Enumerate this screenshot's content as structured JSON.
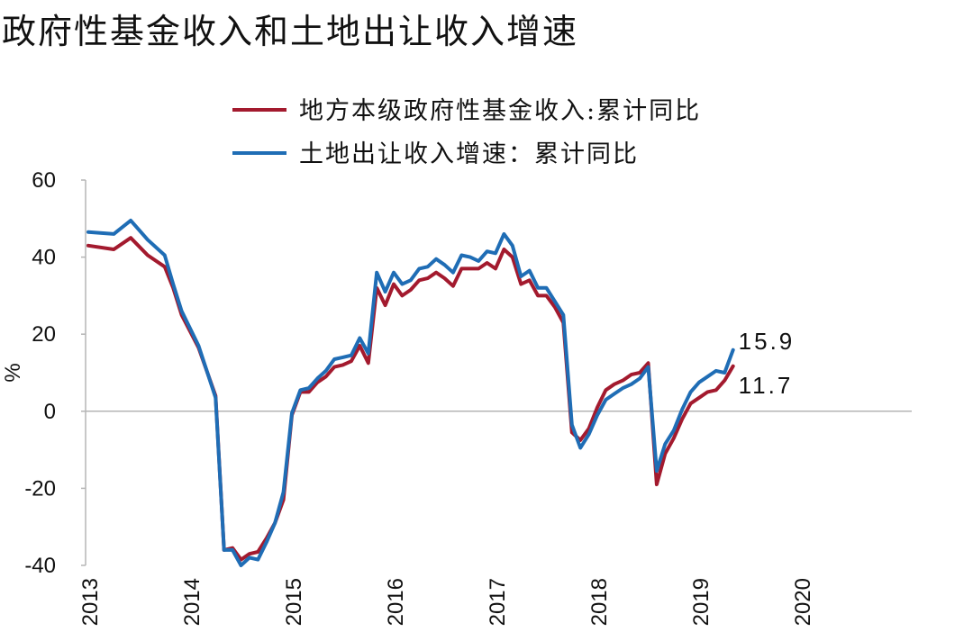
{
  "chart_data": {
    "type": "line",
    "title": "政府性基金收入和土地出让收入增速",
    "ylabel": "%",
    "ylim": [
      -40,
      60
    ],
    "yticks": [
      "60",
      "40",
      "20",
      "0",
      "-20",
      "-40"
    ],
    "year_labels": [
      "2013",
      "2014",
      "2015",
      "2016",
      "2017",
      "2018",
      "2019",
      "2020"
    ],
    "legend_position": "top-center",
    "grid": false,
    "series": [
      {
        "name": "地方本级政府性基金收入:累计同比",
        "color": "#a31a2e",
        "end_label": "11.7",
        "points": [
          [
            "2013-01",
            43.0
          ],
          [
            "2013-04",
            42.0
          ],
          [
            "2013-06",
            45.0
          ],
          [
            "2013-08",
            40.5
          ],
          [
            "2013-10",
            37.5
          ],
          [
            "2013-11",
            32.0
          ],
          [
            "2013-12",
            25.0
          ],
          [
            "2014-02",
            16.5
          ],
          [
            "2014-04",
            4.0
          ],
          [
            "2014-05",
            -36.0
          ],
          [
            "2014-06",
            -35.5
          ],
          [
            "2014-07",
            -38.5
          ],
          [
            "2014-08",
            -37.0
          ],
          [
            "2014-09",
            -36.5
          ],
          [
            "2014-10",
            -33.0
          ],
          [
            "2014-11",
            -29.0
          ],
          [
            "2014-12",
            -23.0
          ],
          [
            "2015-01",
            -1.0
          ],
          [
            "2015-02",
            5.0
          ],
          [
            "2015-03",
            5.0
          ],
          [
            "2015-04",
            7.5
          ],
          [
            "2015-05",
            9.0
          ],
          [
            "2015-06",
            11.5
          ],
          [
            "2015-07",
            12.0
          ],
          [
            "2015-08",
            13.0
          ],
          [
            "2015-09",
            17.0
          ],
          [
            "2015-10",
            12.5
          ],
          [
            "2015-11",
            32.0
          ],
          [
            "2015-12",
            27.5
          ],
          [
            "2016-01",
            33.0
          ],
          [
            "2016-02",
            30.0
          ],
          [
            "2016-03",
            31.5
          ],
          [
            "2016-04",
            34.0
          ],
          [
            "2016-05",
            34.5
          ],
          [
            "2016-06",
            36.0
          ],
          [
            "2016-07",
            34.5
          ],
          [
            "2016-08",
            32.5
          ],
          [
            "2016-09",
            37.0
          ],
          [
            "2016-10",
            37.0
          ],
          [
            "2016-11",
            37.0
          ],
          [
            "2016-12",
            38.5
          ],
          [
            "2017-01",
            37.0
          ],
          [
            "2017-02",
            42.0
          ],
          [
            "2017-03",
            40.0
          ],
          [
            "2017-04",
            33.0
          ],
          [
            "2017-05",
            34.0
          ],
          [
            "2017-06",
            30.0
          ],
          [
            "2017-07",
            30.0
          ],
          [
            "2017-08",
            27.0
          ],
          [
            "2017-09",
            23.0
          ],
          [
            "2017-10",
            -5.5
          ],
          [
            "2017-11",
            -7.5
          ],
          [
            "2017-12",
            -4.5
          ],
          [
            "2018-01",
            1.0
          ],
          [
            "2018-02",
            5.5
          ],
          [
            "2018-03",
            7.0
          ],
          [
            "2018-04",
            8.0
          ],
          [
            "2018-05",
            9.5
          ],
          [
            "2018-06",
            10.0
          ],
          [
            "2018-07",
            12.5
          ],
          [
            "2018-08",
            -19.0
          ],
          [
            "2018-09",
            -11.0
          ],
          [
            "2018-10",
            -7.0
          ],
          [
            "2018-11",
            -2.0
          ],
          [
            "2018-12",
            2.0
          ],
          [
            "2019-01",
            3.5
          ],
          [
            "2019-02",
            5.0
          ],
          [
            "2019-03",
            5.5
          ],
          [
            "2019-04",
            8.0
          ],
          [
            "2019-05",
            11.7
          ]
        ]
      },
      {
        "name": "土地出让收入增速：累计同比",
        "color": "#1f6db5",
        "end_label": "15.9",
        "points": [
          [
            "2013-01",
            46.5
          ],
          [
            "2013-04",
            46.0
          ],
          [
            "2013-06",
            49.5
          ],
          [
            "2013-08",
            44.5
          ],
          [
            "2013-10",
            40.5
          ],
          [
            "2013-11",
            33.0
          ],
          [
            "2013-12",
            26.0
          ],
          [
            "2014-02",
            17.0
          ],
          [
            "2014-04",
            3.5
          ],
          [
            "2014-05",
            -36.0
          ],
          [
            "2014-06",
            -36.0
          ],
          [
            "2014-07",
            -40.0
          ],
          [
            "2014-08",
            -38.0
          ],
          [
            "2014-09",
            -38.5
          ],
          [
            "2014-10",
            -34.0
          ],
          [
            "2014-11",
            -29.0
          ],
          [
            "2014-12",
            -21.0
          ],
          [
            "2015-01",
            -0.5
          ],
          [
            "2015-02",
            5.5
          ],
          [
            "2015-03",
            6.0
          ],
          [
            "2015-04",
            8.5
          ],
          [
            "2015-05",
            10.5
          ],
          [
            "2015-06",
            13.5
          ],
          [
            "2015-07",
            14.0
          ],
          [
            "2015-08",
            14.5
          ],
          [
            "2015-09",
            19.0
          ],
          [
            "2015-10",
            15.0
          ],
          [
            "2015-11",
            36.0
          ],
          [
            "2015-12",
            31.0
          ],
          [
            "2016-01",
            36.0
          ],
          [
            "2016-02",
            33.0
          ],
          [
            "2016-03",
            34.0
          ],
          [
            "2016-04",
            37.0
          ],
          [
            "2016-05",
            37.5
          ],
          [
            "2016-06",
            39.5
          ],
          [
            "2016-07",
            38.0
          ],
          [
            "2016-08",
            36.0
          ],
          [
            "2016-09",
            40.5
          ],
          [
            "2016-10",
            40.0
          ],
          [
            "2016-11",
            39.0
          ],
          [
            "2016-12",
            41.5
          ],
          [
            "2017-01",
            41.0
          ],
          [
            "2017-02",
            46.0
          ],
          [
            "2017-03",
            43.0
          ],
          [
            "2017-04",
            35.0
          ],
          [
            "2017-05",
            36.5
          ],
          [
            "2017-06",
            32.0
          ],
          [
            "2017-07",
            32.0
          ],
          [
            "2017-08",
            28.5
          ],
          [
            "2017-09",
            25.0
          ],
          [
            "2017-10",
            -3.5
          ],
          [
            "2017-11",
            -9.5
          ],
          [
            "2017-12",
            -6.0
          ],
          [
            "2018-01",
            -1.0
          ],
          [
            "2018-02",
            3.0
          ],
          [
            "2018-03",
            4.5
          ],
          [
            "2018-04",
            6.0
          ],
          [
            "2018-05",
            7.0
          ],
          [
            "2018-06",
            8.5
          ],
          [
            "2018-07",
            11.5
          ],
          [
            "2018-08",
            -15.5
          ],
          [
            "2018-09",
            -8.5
          ],
          [
            "2018-10",
            -5.0
          ],
          [
            "2018-11",
            0.5
          ],
          [
            "2018-12",
            5.0
          ],
          [
            "2019-01",
            7.5
          ],
          [
            "2019-02",
            9.0
          ],
          [
            "2019-03",
            10.5
          ],
          [
            "2019-04",
            10.0
          ],
          [
            "2019-05",
            15.9
          ]
        ]
      }
    ]
  }
}
